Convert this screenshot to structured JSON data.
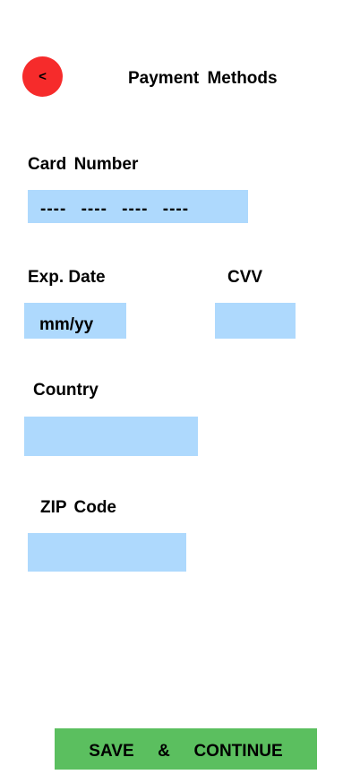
{
  "header": {
    "back_label": "<",
    "title": "Payment Methods"
  },
  "form": {
    "card_number": {
      "label": "Card Number",
      "placeholder": "---- ---- ---- ----",
      "value": ""
    },
    "exp_date": {
      "label": "Exp. Date",
      "placeholder": "mm/yy",
      "value": ""
    },
    "cvv": {
      "label": "CVV",
      "placeholder": "",
      "value": ""
    },
    "country": {
      "label": "Country",
      "placeholder": "",
      "value": ""
    },
    "zip": {
      "label": "ZIP Code",
      "placeholder": "",
      "value": ""
    }
  },
  "footer": {
    "save_label": "SAVE  &  CONTINUE"
  },
  "colors": {
    "back_button": "#f62b2b",
    "input_background": "#aed9fd",
    "save_button": "#5bbf5f"
  }
}
